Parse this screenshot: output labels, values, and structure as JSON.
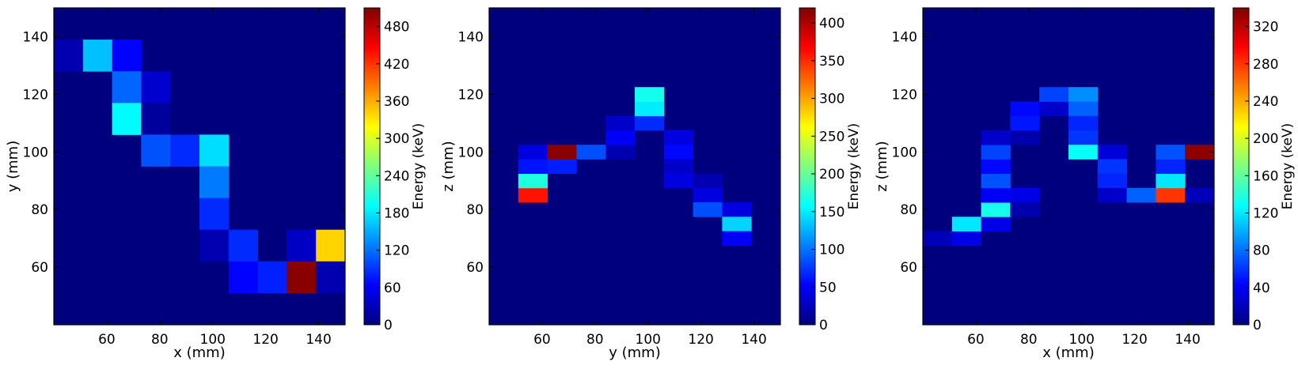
{
  "colormap": [
    "#00007f",
    "#0000ff",
    "#007fff",
    "#00ffff",
    "#7fff7f",
    "#ffff00",
    "#ff7f00",
    "#ff0000",
    "#7f0000"
  ],
  "chart_data": [
    {
      "type": "heatmap",
      "xlabel": "x (mm)",
      "ylabel": "y (mm)",
      "xlim": [
        40,
        150
      ],
      "ylim": [
        40,
        150
      ],
      "xticks": [
        60,
        80,
        100,
        120,
        140
      ],
      "yticks": [
        60,
        80,
        100,
        120,
        140
      ],
      "bin_size": 11,
      "colorbar": {
        "label": "Energy (keV)",
        "range": [
          0,
          510
        ],
        "ticks": [
          0,
          60,
          120,
          180,
          240,
          300,
          360,
          420,
          480
        ]
      },
      "cells": [
        {
          "x": 45.5,
          "y": 133.5,
          "value": 25
        },
        {
          "x": 56.5,
          "y": 133.5,
          "value": 160
        },
        {
          "x": 67.5,
          "y": 133.5,
          "value": 65
        },
        {
          "x": 67.5,
          "y": 122.5,
          "value": 115
        },
        {
          "x": 78.5,
          "y": 122.5,
          "value": 40
        },
        {
          "x": 67.5,
          "y": 111.5,
          "value": 190
        },
        {
          "x": 78.5,
          "y": 111.5,
          "value": 15
        },
        {
          "x": 78.5,
          "y": 100.5,
          "value": 105
        },
        {
          "x": 89.5,
          "y": 100.5,
          "value": 85
        },
        {
          "x": 100.5,
          "y": 100.5,
          "value": 175
        },
        {
          "x": 100.5,
          "y": 89.5,
          "value": 125
        },
        {
          "x": 100.5,
          "y": 78.5,
          "value": 85
        },
        {
          "x": 100.5,
          "y": 67.5,
          "value": 25
        },
        {
          "x": 111.5,
          "y": 67.5,
          "value": 85
        },
        {
          "x": 133.5,
          "y": 67.5,
          "value": 35
        },
        {
          "x": 144.5,
          "y": 67.5,
          "value": 340
        },
        {
          "x": 111.5,
          "y": 56.5,
          "value": 65
        },
        {
          "x": 122.5,
          "y": 56.5,
          "value": 80
        },
        {
          "x": 133.5,
          "y": 56.5,
          "value": 505
        },
        {
          "x": 144.5,
          "y": 56.5,
          "value": 25
        }
      ]
    },
    {
      "type": "heatmap",
      "xlabel": "y (mm)",
      "ylabel": "z (mm)",
      "xlim": [
        40,
        150
      ],
      "ylim": [
        40,
        150
      ],
      "xticks": [
        60,
        80,
        100,
        120,
        140
      ],
      "yticks": [
        60,
        80,
        100,
        120,
        140
      ],
      "bin_size": 11,
      "colorbar": {
        "label": "Energy (keV)",
        "range": [
          0,
          420
        ],
        "ticks": [
          0,
          50,
          100,
          150,
          200,
          250,
          300,
          350,
          400
        ]
      },
      "cells": [
        {
          "x": 56.5,
          "y": 85,
          "value": 360
        },
        {
          "x": 56.5,
          "y": 90,
          "value": 170
        },
        {
          "x": 56.5,
          "y": 95,
          "value": 60
        },
        {
          "x": 56.5,
          "y": 100,
          "value": 40
        },
        {
          "x": 67.5,
          "y": 95,
          "value": 65
        },
        {
          "x": 67.5,
          "y": 100,
          "value": 415
        },
        {
          "x": 78.5,
          "y": 100,
          "value": 85
        },
        {
          "x": 89.5,
          "y": 100,
          "value": 20
        },
        {
          "x": 89.5,
          "y": 105,
          "value": 50
        },
        {
          "x": 89.5,
          "y": 110,
          "value": 30
        },
        {
          "x": 100.5,
          "y": 110,
          "value": 70
        },
        {
          "x": 100.5,
          "y": 115,
          "value": 150
        },
        {
          "x": 100.5,
          "y": 120,
          "value": 165
        },
        {
          "x": 111.5,
          "y": 105,
          "value": 40
        },
        {
          "x": 111.5,
          "y": 100,
          "value": 55
        },
        {
          "x": 111.5,
          "y": 95,
          "value": 30
        },
        {
          "x": 111.5,
          "y": 90,
          "value": 40
        },
        {
          "x": 122.5,
          "y": 90,
          "value": 20
        },
        {
          "x": 122.5,
          "y": 85,
          "value": 40
        },
        {
          "x": 122.5,
          "y": 80,
          "value": 85
        },
        {
          "x": 133.5,
          "y": 80,
          "value": 40
        },
        {
          "x": 133.5,
          "y": 75,
          "value": 140
        },
        {
          "x": 133.5,
          "y": 70,
          "value": 50
        }
      ]
    },
    {
      "type": "heatmap",
      "xlabel": "x (mm)",
      "ylabel": "z (mm)",
      "xlim": [
        40,
        150
      ],
      "ylim": [
        40,
        150
      ],
      "xticks": [
        60,
        80,
        100,
        120,
        140
      ],
      "yticks": [
        60,
        80,
        100,
        120,
        140
      ],
      "bin_size": 11,
      "colorbar": {
        "label": "Energy (keV)",
        "range": [
          0,
          340
        ],
        "ticks": [
          0,
          40,
          80,
          120,
          160,
          200,
          240,
          280,
          320
        ]
      },
      "cells": [
        {
          "x": 45.5,
          "y": 70,
          "value": 20
        },
        {
          "x": 56.5,
          "y": 70,
          "value": 35
        },
        {
          "x": 56.5,
          "y": 75,
          "value": 120
        },
        {
          "x": 67.5,
          "y": 75,
          "value": 35
        },
        {
          "x": 67.5,
          "y": 80,
          "value": 135
        },
        {
          "x": 67.5,
          "y": 85,
          "value": 40
        },
        {
          "x": 67.5,
          "y": 90,
          "value": 70
        },
        {
          "x": 67.5,
          "y": 95,
          "value": 45
        },
        {
          "x": 67.5,
          "y": 100,
          "value": 65
        },
        {
          "x": 67.5,
          "y": 105,
          "value": 25
        },
        {
          "x": 78.5,
          "y": 85,
          "value": 35
        },
        {
          "x": 78.5,
          "y": 80,
          "value": 15
        },
        {
          "x": 78.5,
          "y": 105,
          "value": 15
        },
        {
          "x": 78.5,
          "y": 110,
          "value": 50
        },
        {
          "x": 78.5,
          "y": 115,
          "value": 45
        },
        {
          "x": 89.5,
          "y": 115,
          "value": 25
        },
        {
          "x": 89.5,
          "y": 120,
          "value": 65
        },
        {
          "x": 100.5,
          "y": 120,
          "value": 90
        },
        {
          "x": 100.5,
          "y": 115,
          "value": 75
        },
        {
          "x": 100.5,
          "y": 110,
          "value": 55
        },
        {
          "x": 100.5,
          "y": 105,
          "value": 60
        },
        {
          "x": 100.5,
          "y": 100,
          "value": 130
        },
        {
          "x": 111.5,
          "y": 100,
          "value": 30
        },
        {
          "x": 111.5,
          "y": 95,
          "value": 60
        },
        {
          "x": 111.5,
          "y": 90,
          "value": 55
        },
        {
          "x": 111.5,
          "y": 85,
          "value": 25
        },
        {
          "x": 122.5,
          "y": 85,
          "value": 75
        },
        {
          "x": 133.5,
          "y": 85,
          "value": 280
        },
        {
          "x": 133.5,
          "y": 90,
          "value": 120
        },
        {
          "x": 133.5,
          "y": 95,
          "value": 55
        },
        {
          "x": 133.5,
          "y": 100,
          "value": 70
        },
        {
          "x": 144.5,
          "y": 100,
          "value": 335
        },
        {
          "x": 144.5,
          "y": 85,
          "value": 20
        }
      ]
    }
  ]
}
